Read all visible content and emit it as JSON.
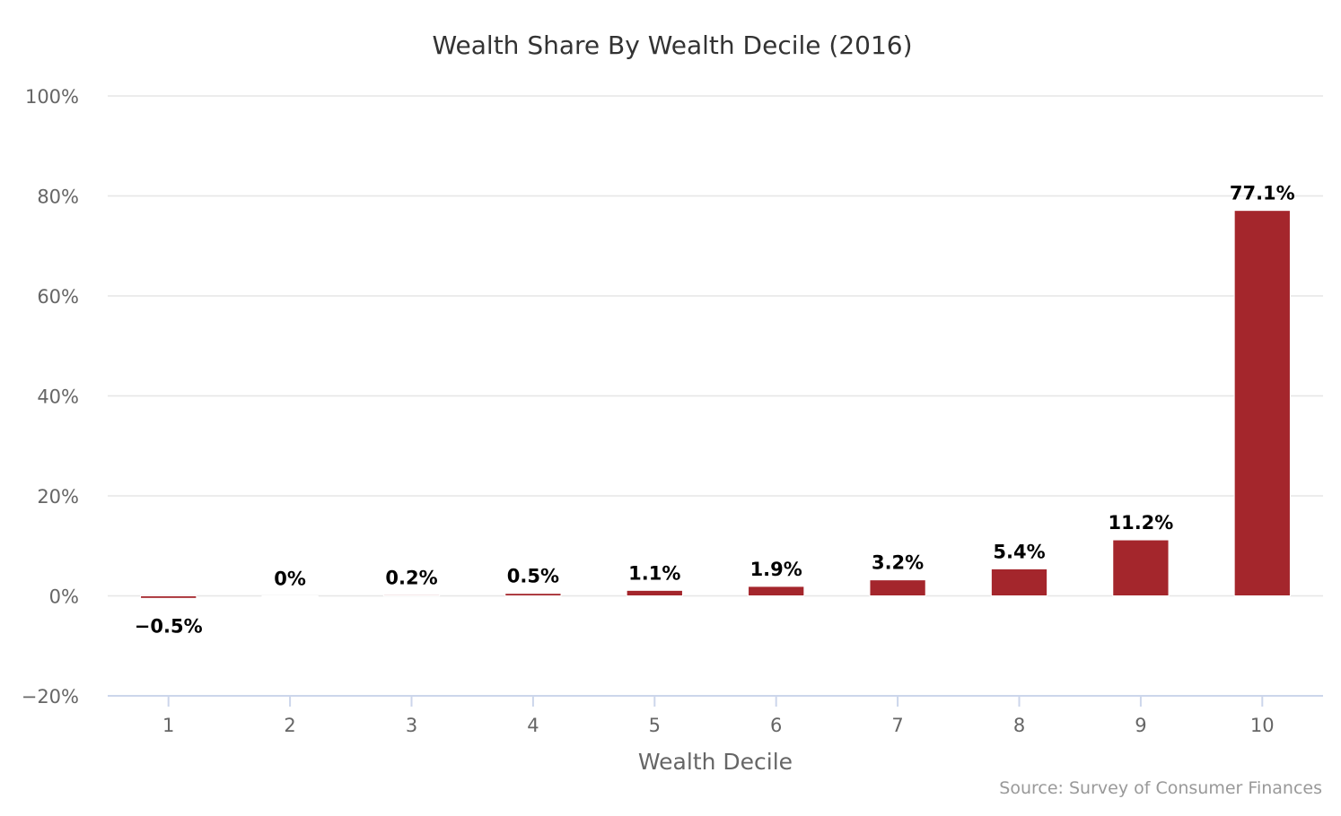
{
  "chart_data": {
    "type": "bar",
    "title": "Wealth Share By Wealth Decile (2016)",
    "xlabel": "Wealth Decile",
    "ylabel": "",
    "categories": [
      "1",
      "2",
      "3",
      "4",
      "5",
      "6",
      "7",
      "8",
      "9",
      "10"
    ],
    "values": [
      -0.5,
      0,
      0.2,
      0.5,
      1.1,
      1.9,
      3.2,
      5.4,
      11.2,
      77.1
    ],
    "data_labels": [
      "-0.5%",
      "0%",
      "0.2%",
      "0.5%",
      "1.1%",
      "1.9%",
      "3.2%",
      "5.4%",
      "11.2%",
      "77.1%"
    ],
    "ylim": [
      -20,
      100
    ],
    "yticks": [
      {
        "value": 100,
        "label": "100%"
      },
      {
        "value": 80,
        "label": "80%"
      },
      {
        "value": 60,
        "label": "60%"
      },
      {
        "value": 40,
        "label": "40%"
      },
      {
        "value": 20,
        "label": "20%"
      },
      {
        "value": 0,
        "label": "0%"
      },
      {
        "value": -20,
        "label": "-20%"
      }
    ],
    "grid": true,
    "legend": "none",
    "bar_color": "#a4262c",
    "credits": "Source: Survey of Consumer Finances"
  }
}
